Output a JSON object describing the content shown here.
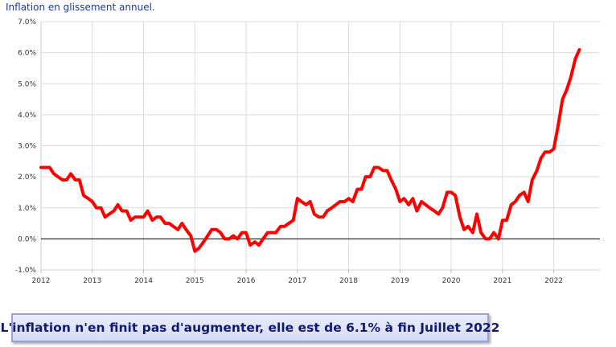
{
  "chart_data": {
    "type": "line",
    "title": "Inflation en glissement annuel.",
    "xlabel": "",
    "ylabel": "",
    "x_range": [
      2012.0,
      2022.9
    ],
    "ylim": [
      -1.0,
      7.0
    ],
    "y_ticks": [
      -1,
      0,
      1,
      2,
      3,
      4,
      5,
      6,
      7
    ],
    "y_tick_labels": [
      "-1.0%",
      "0.0%",
      "1.0%",
      "2.0%",
      "3.0%",
      "4.0%",
      "5.0%",
      "6.0%",
      "7.0%"
    ],
    "x_ticks": [
      2012,
      2013,
      2014,
      2015,
      2016,
      2017,
      2018,
      2019,
      2020,
      2021,
      2022
    ],
    "x_tick_labels": [
      "2012",
      "2013",
      "2014",
      "2015",
      "2016",
      "2017",
      "2018",
      "2019",
      "2020",
      "2021",
      "2022"
    ],
    "grid": true,
    "zero_line": true,
    "series": [
      {
        "color": "#ff0000",
        "x": [
          2012.0,
          2012.08,
          2012.17,
          2012.25,
          2012.33,
          2012.42,
          2012.5,
          2012.58,
          2012.67,
          2012.75,
          2012.83,
          2012.92,
          2013.0,
          2013.08,
          2013.17,
          2013.25,
          2013.33,
          2013.42,
          2013.5,
          2013.58,
          2013.67,
          2013.75,
          2013.83,
          2013.92,
          2014.0,
          2014.08,
          2014.17,
          2014.25,
          2014.33,
          2014.42,
          2014.5,
          2014.58,
          2014.67,
          2014.75,
          2014.83,
          2014.92,
          2015.0,
          2015.08,
          2015.17,
          2015.25,
          2015.33,
          2015.42,
          2015.5,
          2015.58,
          2015.67,
          2015.75,
          2015.83,
          2015.92,
          2016.0,
          2016.08,
          2016.17,
          2016.25,
          2016.33,
          2016.42,
          2016.5,
          2016.58,
          2016.67,
          2016.75,
          2016.83,
          2016.92,
          2017.0,
          2017.08,
          2017.17,
          2017.25,
          2017.33,
          2017.42,
          2017.5,
          2017.58,
          2017.67,
          2017.75,
          2017.83,
          2017.92,
          2018.0,
          2018.08,
          2018.17,
          2018.25,
          2018.33,
          2018.42,
          2018.5,
          2018.58,
          2018.67,
          2018.75,
          2018.83,
          2018.92,
          2019.0,
          2019.08,
          2019.17,
          2019.25,
          2019.33,
          2019.42,
          2019.5,
          2019.58,
          2019.67,
          2019.75,
          2019.83,
          2019.92,
          2020.0,
          2020.08,
          2020.17,
          2020.25,
          2020.33,
          2020.42,
          2020.5,
          2020.58,
          2020.67,
          2020.75,
          2020.83,
          2020.92,
          2021.0,
          2021.08,
          2021.17,
          2021.25,
          2021.33,
          2021.42,
          2021.5,
          2021.58,
          2021.67,
          2021.75,
          2021.83,
          2021.92,
          2022.0,
          2022.08,
          2022.17,
          2022.25,
          2022.33,
          2022.42,
          2022.5
        ],
        "y": [
          2.3,
          2.3,
          2.3,
          2.1,
          2.0,
          1.9,
          1.9,
          2.1,
          1.9,
          1.9,
          1.4,
          1.3,
          1.2,
          1.0,
          1.0,
          0.7,
          0.8,
          0.9,
          1.1,
          0.9,
          0.9,
          0.6,
          0.7,
          0.7,
          0.7,
          0.9,
          0.6,
          0.7,
          0.7,
          0.5,
          0.5,
          0.4,
          0.3,
          0.5,
          0.3,
          0.1,
          -0.4,
          -0.3,
          -0.1,
          0.1,
          0.3,
          0.3,
          0.2,
          0.0,
          0.0,
          0.1,
          0.0,
          0.2,
          0.2,
          -0.2,
          -0.1,
          -0.2,
          0.0,
          0.2,
          0.2,
          0.2,
          0.4,
          0.4,
          0.5,
          0.6,
          1.3,
          1.2,
          1.1,
          1.2,
          0.8,
          0.7,
          0.7,
          0.9,
          1.0,
          1.1,
          1.2,
          1.2,
          1.3,
          1.2,
          1.6,
          1.6,
          2.0,
          2.0,
          2.3,
          2.3,
          2.2,
          2.2,
          1.9,
          1.6,
          1.2,
          1.3,
          1.1,
          1.3,
          0.9,
          1.2,
          1.1,
          1.0,
          0.9,
          0.8,
          1.0,
          1.5,
          1.5,
          1.4,
          0.7,
          0.3,
          0.4,
          0.2,
          0.8,
          0.2,
          0.0,
          0.0,
          0.2,
          0.0,
          0.6,
          0.6,
          1.1,
          1.2,
          1.4,
          1.5,
          1.2,
          1.9,
          2.2,
          2.6,
          2.8,
          2.8,
          2.9,
          3.6,
          4.5,
          4.8,
          5.2,
          5.8,
          6.1
        ]
      }
    ]
  },
  "caption": "L'inflation n'en finit pas d'augmenter, elle est de 6.1% à fin Juillet 2022"
}
